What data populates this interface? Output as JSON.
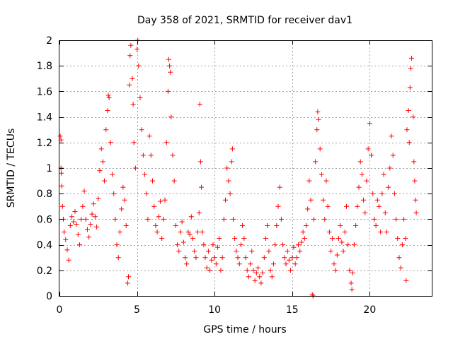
{
  "chart_data": {
    "type": "scatter",
    "title": "Day 358 of 2021, SRMTID for receiver dav1",
    "xlabel": "GPS time / hours",
    "ylabel": "SRMTID / TECUs",
    "xlim": [
      0,
      24
    ],
    "ylim": [
      0,
      2
    ],
    "xticks": [
      0,
      5,
      10,
      15,
      20
    ],
    "yticks": [
      0,
      0.2,
      0.4,
      0.6,
      0.8,
      1,
      1.2,
      1.4,
      1.6,
      1.8,
      2
    ],
    "ytick_labels": [
      "0",
      "0.2",
      "0.4",
      "0.6",
      "0.8",
      "1",
      "1.2",
      "1.4",
      "1.6",
      "1.8",
      "2"
    ],
    "grid": true,
    "marker": "+",
    "color": "#ff0000",
    "series": [
      {
        "name": "dav1",
        "points": [
          [
            0.05,
            1.25
          ],
          [
            0.1,
            1.22
          ],
          [
            0.1,
            1.0
          ],
          [
            0.12,
            0.96
          ],
          [
            0.15,
            0.86
          ],
          [
            0.2,
            0.7
          ],
          [
            0.25,
            0.6
          ],
          [
            0.3,
            0.5
          ],
          [
            0.4,
            0.44
          ],
          [
            0.5,
            0.36
          ],
          [
            0.6,
            0.28
          ],
          [
            0.7,
            0.55
          ],
          [
            0.8,
            0.62
          ],
          [
            0.9,
            0.58
          ],
          [
            1.0,
            0.66
          ],
          [
            1.1,
            0.56
          ],
          [
            1.2,
            0.48
          ],
          [
            1.3,
            0.4
          ],
          [
            1.4,
            0.6
          ],
          [
            1.5,
            0.7
          ],
          [
            1.6,
            0.82
          ],
          [
            1.7,
            0.6
          ],
          [
            1.8,
            0.52
          ],
          [
            1.9,
            0.46
          ],
          [
            2.0,
            0.56
          ],
          [
            2.1,
            0.64
          ],
          [
            2.2,
            0.72
          ],
          [
            2.3,
            0.62
          ],
          [
            2.4,
            0.54
          ],
          [
            2.5,
            0.76
          ],
          [
            2.6,
            0.98
          ],
          [
            2.7,
            1.15
          ],
          [
            2.8,
            1.05
          ],
          [
            2.9,
            0.9
          ],
          [
            3.0,
            1.3
          ],
          [
            3.1,
            1.45
          ],
          [
            3.15,
            1.57
          ],
          [
            3.2,
            1.55
          ],
          [
            3.3,
            1.2
          ],
          [
            3.4,
            0.95
          ],
          [
            3.5,
            0.8
          ],
          [
            3.6,
            0.6
          ],
          [
            3.7,
            0.4
          ],
          [
            3.8,
            0.3
          ],
          [
            3.9,
            0.5
          ],
          [
            4.0,
            0.68
          ],
          [
            4.1,
            0.85
          ],
          [
            4.2,
            0.75
          ],
          [
            4.3,
            0.55
          ],
          [
            4.4,
            0.1
          ],
          [
            4.45,
            0.15
          ],
          [
            4.5,
            1.65
          ],
          [
            4.55,
            1.88
          ],
          [
            4.6,
            1.96
          ],
          [
            4.7,
            1.7
          ],
          [
            4.75,
            1.5
          ],
          [
            4.8,
            1.2
          ],
          [
            4.9,
            1.0
          ],
          [
            5.0,
            1.93
          ],
          [
            5.05,
            2.0
          ],
          [
            5.1,
            1.8
          ],
          [
            5.2,
            1.55
          ],
          [
            5.3,
            1.3
          ],
          [
            5.4,
            1.1
          ],
          [
            5.5,
            0.95
          ],
          [
            5.6,
            0.8
          ],
          [
            5.7,
            0.6
          ],
          [
            5.8,
            1.25
          ],
          [
            5.9,
            1.1
          ],
          [
            6.0,
            0.9
          ],
          [
            6.1,
            0.7
          ],
          [
            6.2,
            0.55
          ],
          [
            6.3,
            0.5
          ],
          [
            6.4,
            0.62
          ],
          [
            6.5,
            0.74
          ],
          [
            6.6,
            0.45
          ],
          [
            6.7,
            0.6
          ],
          [
            6.8,
            0.75
          ],
          [
            6.9,
            1.2
          ],
          [
            7.0,
            1.6
          ],
          [
            7.05,
            1.85
          ],
          [
            7.1,
            1.8
          ],
          [
            7.15,
            1.75
          ],
          [
            7.2,
            1.4
          ],
          [
            7.3,
            1.1
          ],
          [
            7.4,
            0.9
          ],
          [
            7.5,
            0.55
          ],
          [
            7.6,
            0.4
          ],
          [
            7.7,
            0.35
          ],
          [
            7.8,
            0.5
          ],
          [
            7.9,
            0.58
          ],
          [
            8.0,
            0.42
          ],
          [
            8.1,
            0.3
          ],
          [
            8.2,
            0.25
          ],
          [
            8.3,
            0.5
          ],
          [
            8.4,
            0.48
          ],
          [
            8.5,
            0.62
          ],
          [
            8.6,
            0.45
          ],
          [
            8.7,
            0.35
          ],
          [
            8.8,
            0.3
          ],
          [
            8.9,
            0.5
          ],
          [
            9.0,
            0.65
          ],
          [
            9.05,
            1.5
          ],
          [
            9.1,
            1.05
          ],
          [
            9.15,
            0.85
          ],
          [
            9.2,
            0.5
          ],
          [
            9.3,
            0.4
          ],
          [
            9.4,
            0.3
          ],
          [
            9.5,
            0.22
          ],
          [
            9.6,
            0.35
          ],
          [
            9.7,
            0.2
          ],
          [
            9.8,
            0.28
          ],
          [
            9.9,
            0.4
          ],
          [
            10.0,
            0.3
          ],
          [
            10.1,
            0.25
          ],
          [
            10.2,
            0.38
          ],
          [
            10.3,
            0.45
          ],
          [
            10.4,
            0.2
          ],
          [
            10.5,
            0.3
          ],
          [
            10.6,
            0.6
          ],
          [
            10.7,
            0.75
          ],
          [
            10.8,
            1.0
          ],
          [
            10.9,
            0.9
          ],
          [
            11.0,
            0.8
          ],
          [
            11.1,
            1.05
          ],
          [
            11.15,
            1.15
          ],
          [
            11.2,
            0.6
          ],
          [
            11.3,
            0.45
          ],
          [
            11.4,
            0.35
          ],
          [
            11.5,
            0.3
          ],
          [
            11.6,
            0.25
          ],
          [
            11.7,
            0.4
          ],
          [
            11.8,
            0.55
          ],
          [
            11.9,
            0.45
          ],
          [
            12.0,
            0.3
          ],
          [
            12.1,
            0.2
          ],
          [
            12.2,
            0.15
          ],
          [
            12.3,
            0.25
          ],
          [
            12.4,
            0.35
          ],
          [
            12.5,
            0.2
          ],
          [
            12.6,
            0.12
          ],
          [
            12.7,
            0.18
          ],
          [
            12.8,
            0.22
          ],
          [
            12.9,
            0.15
          ],
          [
            13.0,
            0.1
          ],
          [
            13.1,
            0.18
          ],
          [
            13.2,
            0.3
          ],
          [
            13.3,
            0.45
          ],
          [
            13.4,
            0.55
          ],
          [
            13.5,
            0.35
          ],
          [
            13.6,
            0.2
          ],
          [
            13.7,
            0.15
          ],
          [
            13.8,
            0.25
          ],
          [
            13.9,
            0.4
          ],
          [
            14.0,
            0.55
          ],
          [
            14.1,
            0.7
          ],
          [
            14.2,
            0.85
          ],
          [
            14.3,
            0.6
          ],
          [
            14.4,
            0.4
          ],
          [
            14.5,
            0.3
          ],
          [
            14.6,
            0.25
          ],
          [
            14.7,
            0.35
          ],
          [
            14.8,
            0.28
          ],
          [
            14.9,
            0.2
          ],
          [
            15.0,
            0.3
          ],
          [
            15.1,
            0.38
          ],
          [
            15.2,
            0.25
          ],
          [
            15.3,
            0.3
          ],
          [
            15.4,
            0.4
          ],
          [
            15.5,
            0.35
          ],
          [
            15.6,
            0.42
          ],
          [
            15.7,
            0.5
          ],
          [
            15.8,
            0.45
          ],
          [
            15.9,
            0.55
          ],
          [
            16.0,
            0.68
          ],
          [
            16.1,
            0.9
          ],
          [
            16.2,
            0.75
          ],
          [
            16.3,
            0.01
          ],
          [
            16.35,
            0.0
          ],
          [
            16.4,
            0.6
          ],
          [
            16.5,
            1.05
          ],
          [
            16.6,
            1.3
          ],
          [
            16.65,
            1.44
          ],
          [
            16.7,
            1.38
          ],
          [
            16.8,
            1.15
          ],
          [
            16.9,
            0.95
          ],
          [
            17.0,
            0.75
          ],
          [
            17.1,
            0.6
          ],
          [
            17.2,
            0.9
          ],
          [
            17.3,
            0.7
          ],
          [
            17.4,
            0.5
          ],
          [
            17.5,
            0.35
          ],
          [
            17.6,
            0.45
          ],
          [
            17.7,
            0.25
          ],
          [
            17.8,
            0.2
          ],
          [
            17.9,
            0.32
          ],
          [
            18.0,
            0.45
          ],
          [
            18.1,
            0.55
          ],
          [
            18.2,
            0.42
          ],
          [
            18.3,
            0.35
          ],
          [
            18.4,
            0.5
          ],
          [
            18.5,
            0.7
          ],
          [
            18.6,
            0.4
          ],
          [
            18.7,
            0.2
          ],
          [
            18.8,
            0.1
          ],
          [
            18.85,
            0.05
          ],
          [
            18.9,
            0.18
          ],
          [
            19.0,
            0.4
          ],
          [
            19.1,
            0.55
          ],
          [
            19.2,
            0.7
          ],
          [
            19.3,
            0.85
          ],
          [
            19.4,
            1.05
          ],
          [
            19.5,
            0.95
          ],
          [
            19.6,
            0.75
          ],
          [
            19.7,
            0.65
          ],
          [
            19.8,
            0.9
          ],
          [
            19.9,
            1.15
          ],
          [
            20.0,
            1.35
          ],
          [
            20.1,
            1.1
          ],
          [
            20.2,
            0.8
          ],
          [
            20.3,
            0.6
          ],
          [
            20.4,
            0.55
          ],
          [
            20.5,
            0.75
          ],
          [
            20.6,
            0.7
          ],
          [
            20.7,
            0.5
          ],
          [
            20.8,
            0.8
          ],
          [
            20.9,
            0.95
          ],
          [
            21.0,
            0.65
          ],
          [
            21.1,
            0.5
          ],
          [
            21.2,
            0.85
          ],
          [
            21.3,
            1.0
          ],
          [
            21.4,
            1.25
          ],
          [
            21.5,
            1.1
          ],
          [
            21.6,
            0.8
          ],
          [
            21.7,
            0.6
          ],
          [
            21.8,
            0.45
          ],
          [
            21.9,
            0.3
          ],
          [
            22.0,
            0.22
          ],
          [
            22.1,
            0.4
          ],
          [
            22.2,
            0.6
          ],
          [
            22.3,
            0.45
          ],
          [
            22.35,
            0.12
          ],
          [
            22.4,
            1.3
          ],
          [
            22.5,
            1.45
          ],
          [
            22.55,
            1.2
          ],
          [
            22.6,
            1.63
          ],
          [
            22.65,
            1.78
          ],
          [
            22.7,
            1.86
          ],
          [
            22.8,
            1.4
          ],
          [
            22.85,
            1.05
          ],
          [
            22.9,
            0.9
          ],
          [
            22.95,
            0.75
          ],
          [
            23.0,
            0.65
          ]
        ]
      }
    ]
  }
}
